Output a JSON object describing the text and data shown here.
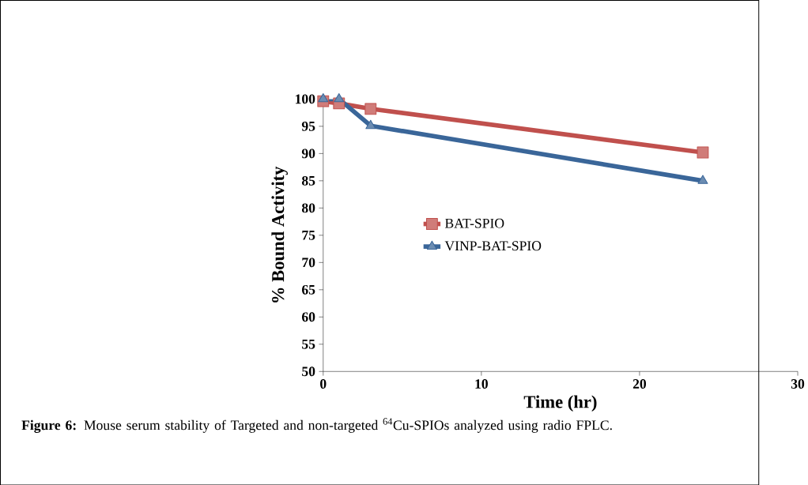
{
  "chart_data": {
    "type": "line",
    "xlabel": "Time (hr)",
    "ylabel": "% Bound Activity",
    "x": [
      0,
      1,
      3,
      24
    ],
    "series": [
      {
        "name": "BAT-SPIO",
        "color": "#c0504d",
        "marker": "square",
        "values": [
          99.6,
          99.2,
          98.2,
          90.2
        ]
      },
      {
        "name": "VINP-BAT-SPIO",
        "color": "#3a6699",
        "marker": "triangle",
        "values": [
          100,
          100,
          95.1,
          85
        ]
      }
    ],
    "xlim": [
      0,
      30
    ],
    "xticks": [
      0,
      10,
      20,
      30
    ],
    "ylim": [
      50,
      100
    ],
    "yticks": [
      50,
      55,
      60,
      65,
      70,
      75,
      80,
      85,
      90,
      95,
      100
    ],
    "grid": false,
    "legend": "left",
    "line_style": "solid",
    "annotations": [
      "**Figure 6:** Mouse serum stability of Targeted and non-targeted $^{64}$Cu-SPIOs analyzed using radio FPLC."
    ]
  }
}
